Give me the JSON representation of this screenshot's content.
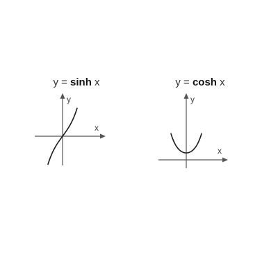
{
  "chart_data": [
    {
      "type": "line",
      "title": {
        "prefix": "y = ",
        "fn": "sinh",
        "suffix": " x"
      },
      "xlabel": "x",
      "ylabel": "y",
      "xlim": [
        -1.5,
        1.5
      ],
      "ylim": [
        -2.3,
        2.3
      ],
      "series": [
        {
          "x": [
            -1.5,
            -1.2,
            -0.9,
            -0.6,
            -0.3,
            0,
            0.3,
            0.6,
            0.9,
            1.2,
            1.5
          ],
          "y": [
            -2.13,
            -1.51,
            -1.03,
            -0.64,
            -0.3,
            0,
            0.3,
            0.64,
            1.03,
            1.51,
            2.13
          ]
        }
      ],
      "colors": {
        "curve": "#1a1a1a",
        "axis": "#555555"
      }
    },
    {
      "type": "line",
      "title": {
        "prefix": "y = ",
        "fn": "cosh",
        "suffix": " x"
      },
      "xlabel": "x",
      "ylabel": "y",
      "xlim": [
        -2.0,
        2.0
      ],
      "ylim": [
        0,
        3.8
      ],
      "series": [
        {
          "x": [
            -2.0,
            -1.6,
            -1.2,
            -0.8,
            -0.4,
            0,
            0.4,
            0.8,
            1.2,
            1.6,
            2.0
          ],
          "y": [
            3.76,
            2.58,
            1.81,
            1.34,
            1.08,
            1.0,
            1.08,
            1.34,
            1.81,
            2.58,
            3.76
          ]
        }
      ],
      "colors": {
        "curve": "#1a1a1a",
        "axis": "#555555"
      }
    }
  ]
}
